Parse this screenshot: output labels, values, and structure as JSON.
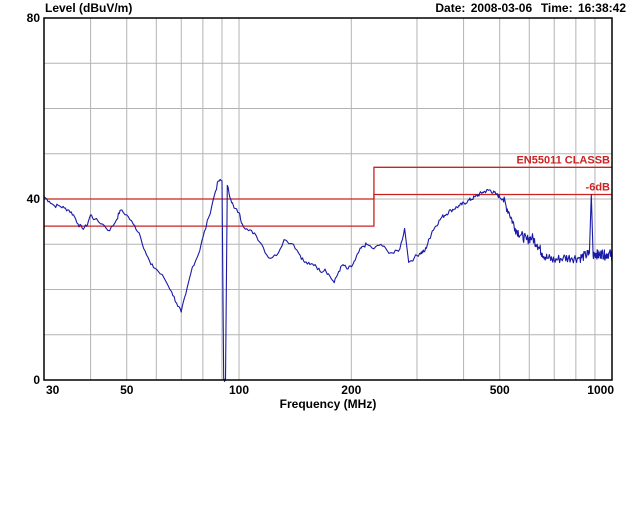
{
  "header": {
    "ylabel": "Level (dBuV/m)",
    "date_label": "Date:",
    "date": "2008-03-06",
    "time_label": "Time:",
    "time": "16:38:42"
  },
  "colors": {
    "trace": "#1a1aa8",
    "limit": "#cc2222",
    "grid": "#b4b4b4",
    "axis": "#000000"
  },
  "chart_data": {
    "type": "line",
    "title": "",
    "xlabel": "Frequency (MHz)",
    "ylabel": "Level (dBuV/m)",
    "x_scale": "log",
    "xlim": [
      30,
      1000
    ],
    "ylim": [
      0,
      80
    ],
    "x_ticks": [
      30,
      50,
      100,
      200,
      500,
      1000
    ],
    "x_tick_labels": [
      "30",
      "50",
      "100",
      "200",
      "500",
      "1000"
    ],
    "y_ticks": [
      0,
      40,
      80
    ],
    "y_tick_labels": [
      "0",
      "40",
      "80"
    ],
    "grid": true,
    "limits": [
      {
        "name": "EN55011 CLASSB",
        "points": [
          [
            30,
            40
          ],
          [
            230,
            40
          ],
          [
            230,
            47
          ],
          [
            1000,
            47
          ]
        ]
      },
      {
        "name": "-6dB",
        "points": [
          [
            30,
            34
          ],
          [
            230,
            34
          ],
          [
            230,
            41
          ],
          [
            1000,
            41
          ]
        ]
      }
    ],
    "series": [
      {
        "values": [
          [
            30,
            40.5
          ],
          [
            31,
            39.5
          ],
          [
            32,
            38.5
          ],
          [
            33,
            38.5
          ],
          [
            34,
            38
          ],
          [
            35,
            37.5
          ],
          [
            36,
            36.5
          ],
          [
            37,
            34.5
          ],
          [
            38,
            33.5
          ],
          [
            39,
            34
          ],
          [
            40,
            36.5
          ],
          [
            41,
            35.5
          ],
          [
            43,
            34.5
          ],
          [
            45,
            33
          ],
          [
            47,
            35.5
          ],
          [
            48,
            37.5
          ],
          [
            50,
            36.5
          ],
          [
            52,
            34.5
          ],
          [
            54,
            32.5
          ],
          [
            56,
            28.5
          ],
          [
            58,
            25.5
          ],
          [
            60,
            24.5
          ],
          [
            63,
            22.5
          ],
          [
            66,
            19.5
          ],
          [
            68,
            17
          ],
          [
            70,
            15
          ],
          [
            72,
            19
          ],
          [
            75,
            25
          ],
          [
            78,
            28
          ],
          [
            80,
            31.5
          ],
          [
            83,
            36
          ],
          [
            86,
            41
          ],
          [
            88,
            44
          ],
          [
            90,
            44
          ],
          [
            91,
            0
          ],
          [
            92,
            0
          ],
          [
            93,
            43
          ],
          [
            95,
            40
          ],
          [
            97,
            38
          ],
          [
            100,
            37
          ],
          [
            102,
            34.5
          ],
          [
            106,
            33
          ],
          [
            110,
            32.5
          ],
          [
            115,
            30
          ],
          [
            120,
            27
          ],
          [
            126,
            27.5
          ],
          [
            132,
            31
          ],
          [
            140,
            30
          ],
          [
            146,
            27.5
          ],
          [
            150,
            26
          ],
          [
            155,
            25.5
          ],
          [
            160,
            25.5
          ],
          [
            165,
            24
          ],
          [
            170,
            24.5
          ],
          [
            175,
            23
          ],
          [
            180,
            21.5
          ],
          [
            185,
            24
          ],
          [
            190,
            25.5
          ],
          [
            195,
            24.5
          ],
          [
            200,
            25
          ],
          [
            205,
            26.5
          ],
          [
            210,
            28.5
          ],
          [
            215,
            29.5
          ],
          [
            220,
            30
          ],
          [
            230,
            29
          ],
          [
            240,
            30
          ],
          [
            250,
            28.5
          ],
          [
            260,
            28
          ],
          [
            270,
            29
          ],
          [
            278,
            33.5
          ],
          [
            285,
            26
          ],
          [
            295,
            27
          ],
          [
            305,
            28
          ],
          [
            315,
            28.5
          ],
          [
            330,
            33
          ],
          [
            350,
            36
          ],
          [
            370,
            37.5
          ],
          [
            390,
            38.5
          ],
          [
            410,
            39.5
          ],
          [
            430,
            40.5
          ],
          [
            450,
            41.5
          ],
          [
            470,
            42
          ],
          [
            490,
            41
          ],
          [
            510,
            40
          ],
          [
            530,
            37
          ],
          [
            550,
            33.5
          ],
          [
            570,
            32
          ],
          [
            590,
            31
          ],
          [
            610,
            31.5
          ],
          [
            630,
            30
          ],
          [
            650,
            28
          ],
          [
            670,
            27
          ],
          [
            700,
            26.5
          ],
          [
            740,
            27
          ],
          [
            780,
            27
          ],
          [
            820,
            27
          ],
          [
            850,
            27.5
          ],
          [
            870,
            28
          ],
          [
            880,
            41
          ],
          [
            890,
            27.5
          ],
          [
            905,
            28
          ],
          [
            920,
            27.5
          ],
          [
            940,
            28
          ],
          [
            960,
            27.5
          ],
          [
            980,
            28
          ],
          [
            1000,
            27.5
          ]
        ]
      }
    ]
  }
}
